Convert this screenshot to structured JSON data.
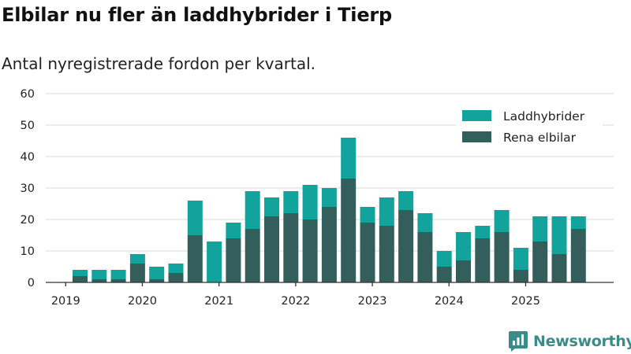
{
  "header": {
    "title": "Elbilar nu fler än laddhybrider i Tierp",
    "subtitle": "Antal nyregistrerade fordon per kvartal."
  },
  "brand": {
    "name": "Newsworthy",
    "logo_icon": "newsworthy-logo-icon",
    "color": "#3a8c8a"
  },
  "colors": {
    "laddhybrider": "#12a39c",
    "rena_elbilar": "#335e5c",
    "grid": "#d9d9d9",
    "axis": "#333333"
  },
  "chart_data": {
    "type": "bar",
    "stacked": true,
    "title": "Elbilar nu fler än laddhybrider i Tierp",
    "subtitle": "Antal nyregistrerade fordon per kvartal.",
    "xlabel": "",
    "ylabel": "",
    "ylim": [
      0,
      60
    ],
    "yticks": [
      0,
      10,
      20,
      30,
      40,
      50,
      60
    ],
    "grid": true,
    "legend_position": "top-right",
    "categories": [
      "2019 Q2",
      "2019 Q3",
      "2019 Q4",
      "2020 Q1",
      "2020 Q2",
      "2020 Q3",
      "2020 Q4",
      "2021 Q1",
      "2021 Q2",
      "2021 Q3",
      "2021 Q4",
      "2022 Q1",
      "2022 Q2",
      "2022 Q3",
      "2022 Q4",
      "2023 Q1",
      "2023 Q2",
      "2023 Q3",
      "2023 Q4",
      "2024 Q1",
      "2024 Q2",
      "2024 Q3",
      "2024 Q4",
      "2025 Q1",
      "2025 Q2",
      "2025 Q3",
      "2025 Q4"
    ],
    "xtick_labels": [
      {
        "label": "2019",
        "index": -0.75
      },
      {
        "label": "2020",
        "index": 3.25
      },
      {
        "label": "2021",
        "index": 7.25
      },
      {
        "label": "2022",
        "index": 11.25
      },
      {
        "label": "2023",
        "index": 15.25
      },
      {
        "label": "2024",
        "index": 19.25
      },
      {
        "label": "2025",
        "index": 23.25
      }
    ],
    "series": [
      {
        "name": "Rena elbilar",
        "key": "rena_elbilar",
        "values": [
          2,
          1,
          1,
          6,
          1,
          3,
          15,
          0,
          14,
          17,
          21,
          22,
          20,
          24,
          33,
          19,
          18,
          23,
          16,
          5,
          7,
          14,
          16,
          4,
          13,
          9,
          17
        ]
      },
      {
        "name": "Laddhybrider",
        "key": "laddhybrider",
        "values": [
          2,
          3,
          3,
          3,
          4,
          3,
          11,
          13,
          5,
          12,
          6,
          7,
          11,
          6,
          13,
          5,
          9,
          6,
          6,
          5,
          9,
          4,
          7,
          7,
          8,
          12,
          4
        ]
      }
    ],
    "legend_order": [
      "Laddhybrider",
      "Rena elbilar"
    ]
  }
}
